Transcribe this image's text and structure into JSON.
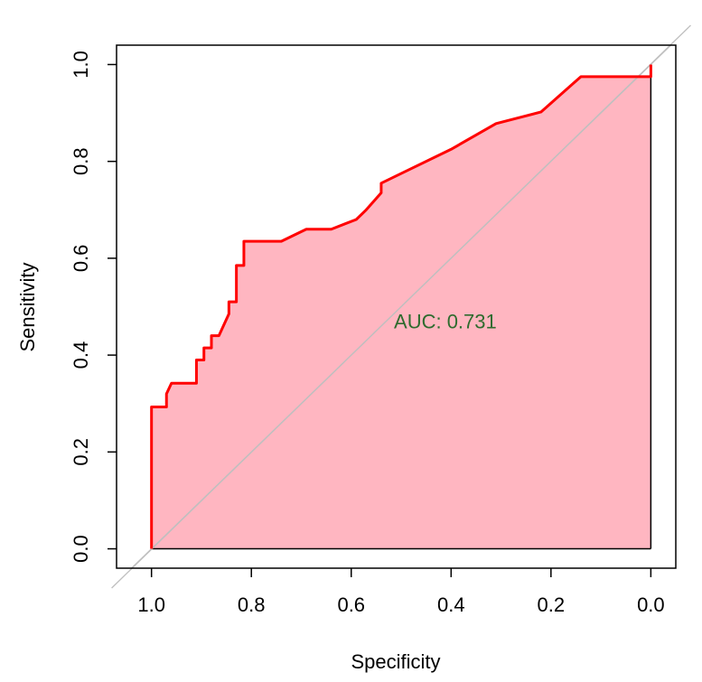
{
  "chart_data": {
    "type": "line",
    "xlabel": "Specificity",
    "ylabel": "Sensitivity",
    "xlim": [
      1.07,
      -0.05
    ],
    "ylim": [
      -0.04,
      1.04
    ],
    "x_reversed": true,
    "grid": false,
    "x_ticks": [
      1.0,
      0.8,
      0.6,
      0.4,
      0.2,
      0.0
    ],
    "x_tick_labels": [
      "1.0",
      "0.8",
      "0.6",
      "0.4",
      "0.2",
      "0.0"
    ],
    "y_ticks": [
      0.0,
      0.2,
      0.4,
      0.6,
      0.8,
      1.0
    ],
    "y_tick_labels": [
      "0.0",
      "0.2",
      "0.4",
      "0.6",
      "0.8",
      "1.0"
    ],
    "annotation": {
      "text": "AUC: 0.731",
      "x": 0.5,
      "y": 0.47
    },
    "reference_line": {
      "from": [
        1.04,
        -0.04
      ],
      "to": [
        -0.04,
        1.04
      ],
      "color": "#bfbfbf"
    },
    "series": [
      {
        "color": "#ff0000",
        "fill": "#ffb6c1",
        "points": [
          [
            1.0,
            0.0
          ],
          [
            1.0,
            0.293
          ],
          [
            0.97,
            0.293
          ],
          [
            0.97,
            0.32
          ],
          [
            0.96,
            0.342
          ],
          [
            0.91,
            0.342
          ],
          [
            0.91,
            0.39
          ],
          [
            0.895,
            0.39
          ],
          [
            0.895,
            0.415
          ],
          [
            0.88,
            0.415
          ],
          [
            0.88,
            0.44
          ],
          [
            0.865,
            0.44
          ],
          [
            0.845,
            0.485
          ],
          [
            0.845,
            0.51
          ],
          [
            0.83,
            0.51
          ],
          [
            0.83,
            0.585
          ],
          [
            0.815,
            0.585
          ],
          [
            0.815,
            0.635
          ],
          [
            0.74,
            0.635
          ],
          [
            0.69,
            0.66
          ],
          [
            0.64,
            0.66
          ],
          [
            0.59,
            0.68
          ],
          [
            0.57,
            0.7
          ],
          [
            0.54,
            0.735
          ],
          [
            0.54,
            0.755
          ],
          [
            0.5,
            0.775
          ],
          [
            0.4,
            0.825
          ],
          [
            0.31,
            0.878
          ],
          [
            0.22,
            0.902
          ],
          [
            0.14,
            0.975
          ],
          [
            0.0,
            0.975
          ],
          [
            0.0,
            1.0
          ]
        ]
      }
    ]
  }
}
